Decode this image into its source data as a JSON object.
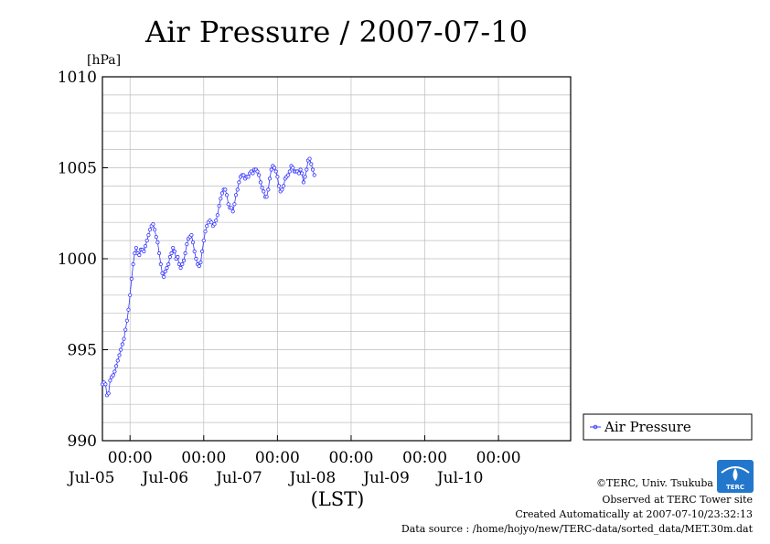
{
  "chart_data": {
    "type": "line",
    "title": "Air Pressure / 2007-07-10",
    "ylabel": "[hPa]",
    "xlabel": "(LST)",
    "ylim": [
      990,
      1010
    ],
    "yticks": [
      990,
      995,
      1000,
      1005,
      1010
    ],
    "xlim": [
      "2007-07-04T15:00",
      "2007-07-10T23:30"
    ],
    "xticks": [
      {
        "time": "00:00",
        "date": "Jul-05"
      },
      {
        "time": "00:00",
        "date": "Jul-06"
      },
      {
        "time": "00:00",
        "date": "Jul-07"
      },
      {
        "time": "00:00",
        "date": "Jul-08"
      },
      {
        "time": "00:00",
        "date": "Jul-09"
      },
      {
        "time": "00:00",
        "date": "Jul-10"
      }
    ],
    "grid": true,
    "legend_placement": "right",
    "series": [
      {
        "name": "Air Pressure",
        "color": "#3333ff",
        "marker": "open-circle",
        "points": [
          [
            0,
            993.1
          ],
          [
            1,
            993.2
          ],
          [
            2,
            993.1
          ],
          [
            3,
            992.5
          ],
          [
            4,
            992.6
          ],
          [
            5,
            993.3
          ],
          [
            6,
            993.5
          ],
          [
            7,
            993.6
          ],
          [
            8,
            993.8
          ],
          [
            9,
            994.1
          ],
          [
            10,
            994.4
          ],
          [
            11,
            994.7
          ],
          [
            12,
            995.0
          ],
          [
            13,
            995.3
          ],
          [
            14,
            995.6
          ],
          [
            15,
            996.1
          ],
          [
            16,
            996.6
          ],
          [
            17,
            997.2
          ],
          [
            18,
            998.0
          ],
          [
            19,
            998.9
          ],
          [
            20,
            999.7
          ],
          [
            21,
            1000.3
          ],
          [
            22,
            1000.6
          ],
          [
            23,
            1000.3
          ],
          [
            24,
            1000.2
          ],
          [
            25,
            1000.5
          ],
          [
            26,
            1000.5
          ],
          [
            27,
            1000.4
          ],
          [
            28,
            1000.7
          ],
          [
            29,
            1001.0
          ],
          [
            30,
            1001.3
          ],
          [
            31,
            1001.6
          ],
          [
            32,
            1001.8
          ],
          [
            33,
            1001.9
          ],
          [
            34,
            1001.6
          ],
          [
            35,
            1001.2
          ],
          [
            36,
            1000.9
          ],
          [
            37,
            1000.3
          ],
          [
            38,
            999.7
          ],
          [
            39,
            999.2
          ],
          [
            40,
            999.0
          ],
          [
            41,
            999.3
          ],
          [
            42,
            999.5
          ],
          [
            43,
            999.7
          ],
          [
            44,
            1000.1
          ],
          [
            45,
            1000.3
          ],
          [
            46,
            1000.6
          ],
          [
            47,
            1000.4
          ],
          [
            48,
            1000.0
          ],
          [
            49,
            1000.1
          ],
          [
            50,
            999.7
          ],
          [
            51,
            999.5
          ],
          [
            52,
            999.7
          ],
          [
            53,
            999.9
          ],
          [
            54,
            1000.3
          ],
          [
            55,
            1000.8
          ],
          [
            56,
            1001.1
          ],
          [
            57,
            1001.2
          ],
          [
            58,
            1001.3
          ],
          [
            59,
            1000.9
          ],
          [
            60,
            1000.4
          ],
          [
            61,
            1000.0
          ],
          [
            62,
            999.7
          ],
          [
            63,
            999.6
          ],
          [
            64,
            999.8
          ],
          [
            65,
            1000.4
          ],
          [
            66,
            1001.0
          ],
          [
            67,
            1001.5
          ],
          [
            68,
            1001.8
          ],
          [
            69,
            1002.0
          ],
          [
            70,
            1002.1
          ],
          [
            71,
            1002.0
          ],
          [
            72,
            1001.8
          ],
          [
            73,
            1001.9
          ],
          [
            74,
            1002.1
          ],
          [
            75,
            1002.4
          ],
          [
            76,
            1002.9
          ],
          [
            77,
            1003.3
          ],
          [
            78,
            1003.6
          ],
          [
            79,
            1003.8
          ],
          [
            80,
            1003.8
          ],
          [
            81,
            1003.5
          ],
          [
            82,
            1003.0
          ],
          [
            83,
            1002.8
          ],
          [
            84,
            1002.8
          ],
          [
            85,
            1002.6
          ],
          [
            86,
            1003.0
          ],
          [
            87,
            1003.5
          ],
          [
            88,
            1003.8
          ],
          [
            89,
            1004.2
          ],
          [
            90,
            1004.5
          ],
          [
            91,
            1004.6
          ],
          [
            92,
            1004.6
          ],
          [
            93,
            1004.4
          ],
          [
            94,
            1004.5
          ],
          [
            95,
            1004.5
          ],
          [
            96,
            1004.7
          ],
          [
            97,
            1004.8
          ],
          [
            98,
            1004.7
          ],
          [
            99,
            1004.9
          ],
          [
            100,
            1004.9
          ],
          [
            101,
            1004.8
          ],
          [
            102,
            1004.6
          ],
          [
            103,
            1004.2
          ],
          [
            104,
            1003.9
          ],
          [
            105,
            1003.7
          ],
          [
            106,
            1003.4
          ],
          [
            107,
            1003.4
          ],
          [
            108,
            1003.8
          ],
          [
            109,
            1004.4
          ],
          [
            110,
            1004.9
          ],
          [
            111,
            1005.1
          ],
          [
            112,
            1005.0
          ],
          [
            113,
            1004.8
          ],
          [
            114,
            1004.5
          ],
          [
            115,
            1004.0
          ],
          [
            116,
            1003.7
          ],
          [
            117,
            1003.8
          ],
          [
            118,
            1004.0
          ],
          [
            119,
            1004.4
          ],
          [
            120,
            1004.5
          ],
          [
            121,
            1004.6
          ],
          [
            122,
            1004.8
          ],
          [
            123,
            1005.1
          ],
          [
            124,
            1005.0
          ],
          [
            125,
            1004.8
          ],
          [
            126,
            1004.8
          ],
          [
            127,
            1004.8
          ],
          [
            128,
            1004.7
          ],
          [
            129,
            1004.9
          ],
          [
            130,
            1004.7
          ],
          [
            131,
            1004.2
          ],
          [
            132,
            1004.5
          ],
          [
            133,
            1004.9
          ],
          [
            134,
            1005.4
          ],
          [
            135,
            1005.5
          ],
          [
            136,
            1005.2
          ],
          [
            137,
            1004.9
          ],
          [
            138,
            1004.6
          ]
        ]
      }
    ]
  },
  "credits": {
    "copyright": "©TERC, Univ. Tsukuba",
    "observed": "Observed at TERC Tower site",
    "created": "Created Automatically at 2007-07-10/23:32:13",
    "source": "Data source : /home/hojyo/new/TERC-data/sorted_data/MET.30m.dat"
  },
  "logo": {
    "text": "TERC",
    "color": "#2277cc"
  }
}
